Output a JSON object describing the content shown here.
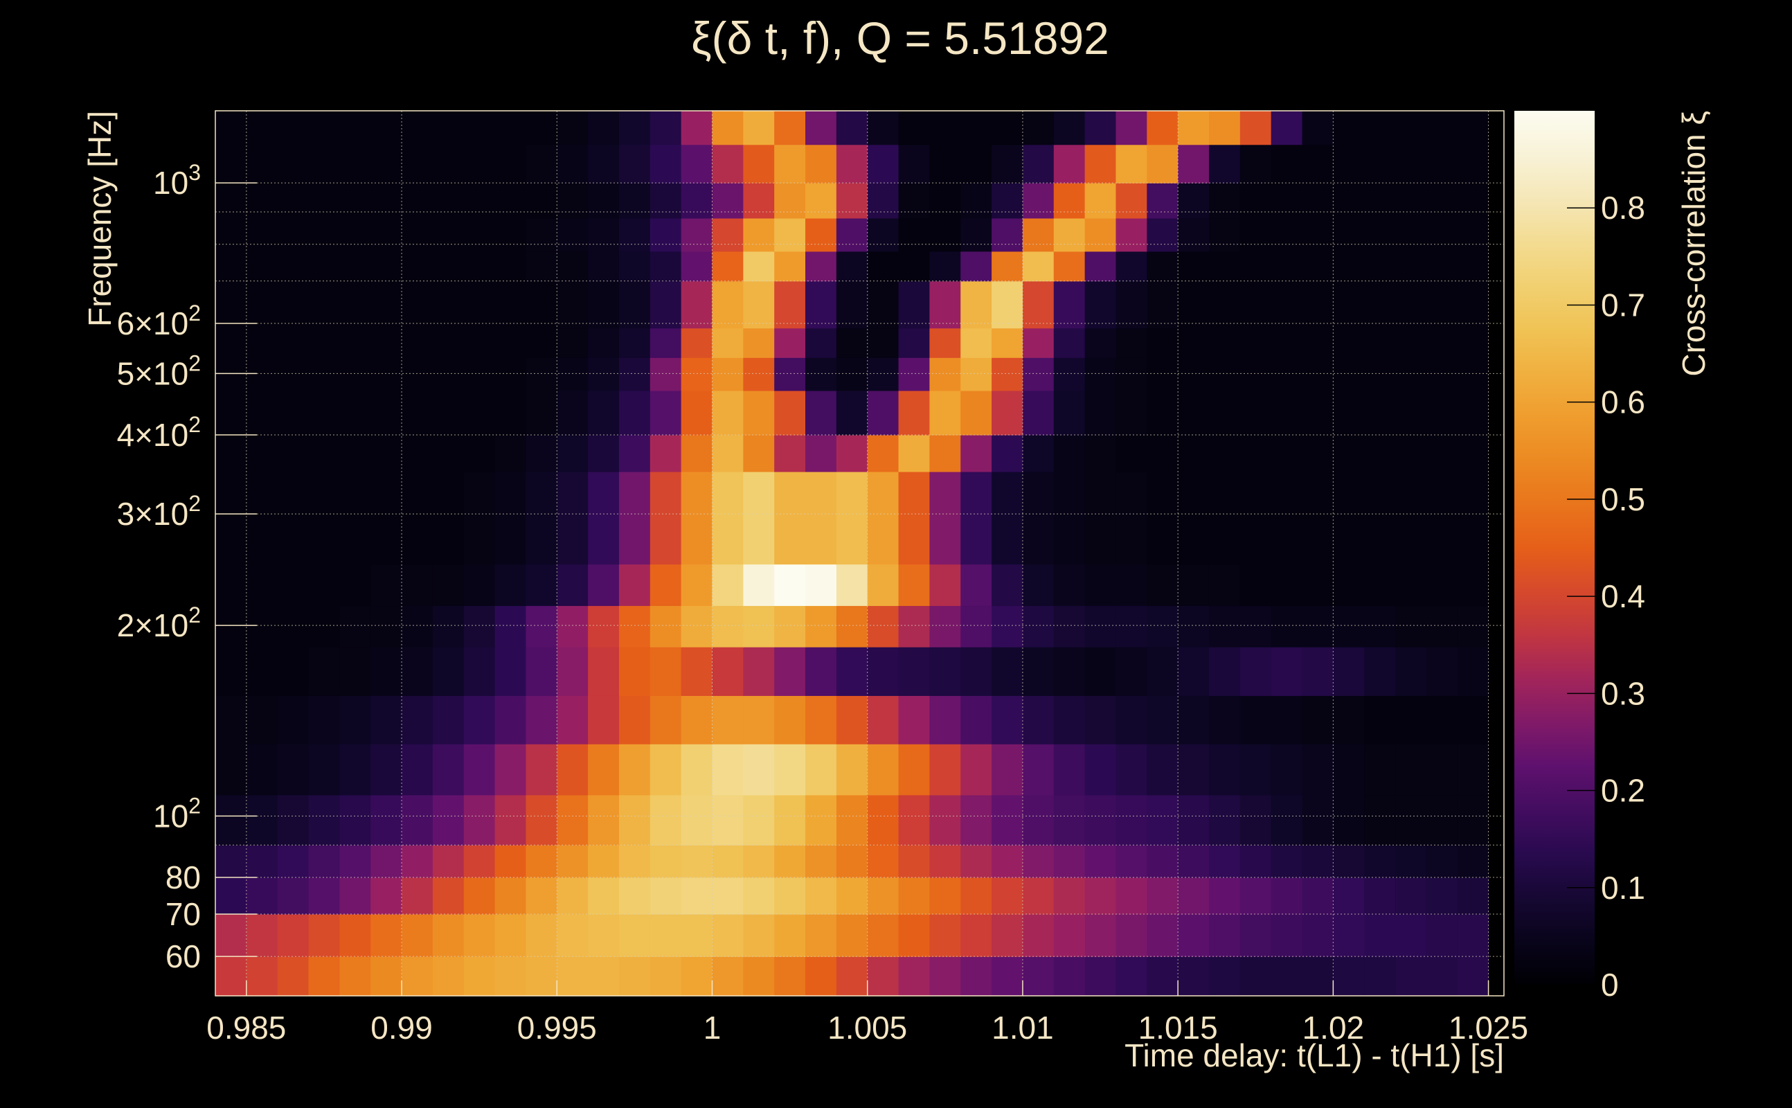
{
  "chart_data": {
    "type": "heatmap",
    "title": "ξ(δ t, f), Q = 5.51892",
    "xlabel": "Time delay: t(L1) - t(H1) [s]",
    "ylabel": "Frequency [Hz]",
    "colorbar_label": "Cross-correlation ξ",
    "x_scale": "linear",
    "y_scale": "log",
    "xlim": [
      0.984,
      1.0255
    ],
    "ylim": [
      52,
      1300
    ],
    "grid": true,
    "colormap": "inferno",
    "color_range": [
      0,
      0.9
    ],
    "x_ticks": [
      0.985,
      0.99,
      0.995,
      1,
      1.005,
      1.01,
      1.015,
      1.02,
      1.025
    ],
    "x_tick_labels": [
      "0.985",
      "0.99",
      "0.995",
      "1",
      "1.005",
      "1.01",
      "1.015",
      "1.02",
      "1.025"
    ],
    "y_ticks": [
      {
        "value": 60,
        "base": "60",
        "exp": ""
      },
      {
        "value": 70,
        "base": "70",
        "exp": ""
      },
      {
        "value": 80,
        "base": "80",
        "exp": ""
      },
      {
        "value": 100,
        "base": "10",
        "exp": "2"
      },
      {
        "value": 200,
        "base": "2×10",
        "exp": "2"
      },
      {
        "value": 300,
        "base": "3×10",
        "exp": "2"
      },
      {
        "value": 400,
        "base": "4×10",
        "exp": "2"
      },
      {
        "value": 500,
        "base": "5×10",
        "exp": "2"
      },
      {
        "value": 600,
        "base": "6×10",
        "exp": "2"
      },
      {
        "value": 1000,
        "base": "10",
        "exp": "3"
      }
    ],
    "y_minor_grid": [
      90,
      700,
      800,
      900
    ],
    "colorbar_ticks": [
      0,
      0.1,
      0.2,
      0.3,
      0.4,
      0.5,
      0.6,
      0.7,
      0.8
    ],
    "colorbar_tick_labels": [
      "0",
      "0.1",
      "0.2",
      "0.3",
      "0.4",
      "0.5",
      "0.6",
      "0.7",
      "0.8"
    ],
    "x_bins": {
      "start": 0.984,
      "step": 0.001,
      "count": 41
    },
    "y_bin_edges": [
      52,
      60,
      70,
      80,
      90,
      108,
      130,
      155,
      185,
      215,
      250,
      350,
      400,
      470,
      530,
      590,
      700,
      780,
      880,
      1000,
      1150,
      1300
    ],
    "rows_low_to_high": [
      [
        0.37,
        0.39,
        0.42,
        0.47,
        0.51,
        0.54,
        0.57,
        0.59,
        0.61,
        0.62,
        0.63,
        0.64,
        0.64,
        0.63,
        0.62,
        0.6,
        0.57,
        0.54,
        0.5,
        0.45,
        0.4,
        0.35,
        0.31,
        0.28,
        0.25,
        0.23,
        0.21,
        0.19,
        0.17,
        0.15,
        0.13,
        0.12,
        0.11,
        0.1,
        0.1,
        0.1,
        0.11,
        0.11,
        0.12,
        0.12,
        0.13
      ],
      [
        0.34,
        0.36,
        0.38,
        0.41,
        0.44,
        0.48,
        0.51,
        0.55,
        0.58,
        0.6,
        0.63,
        0.65,
        0.66,
        0.67,
        0.67,
        0.67,
        0.66,
        0.64,
        0.61,
        0.57,
        0.53,
        0.49,
        0.45,
        0.41,
        0.38,
        0.35,
        0.32,
        0.3,
        0.28,
        0.26,
        0.24,
        0.22,
        0.2,
        0.18,
        0.17,
        0.16,
        0.15,
        0.14,
        0.14,
        0.13,
        0.13
      ],
      [
        0.14,
        0.16,
        0.18,
        0.21,
        0.25,
        0.3,
        0.35,
        0.41,
        0.47,
        0.53,
        0.59,
        0.64,
        0.68,
        0.71,
        0.73,
        0.74,
        0.74,
        0.72,
        0.69,
        0.65,
        0.61,
        0.56,
        0.51,
        0.47,
        0.43,
        0.39,
        0.36,
        0.33,
        0.31,
        0.29,
        0.27,
        0.25,
        0.23,
        0.21,
        0.19,
        0.17,
        0.15,
        0.13,
        0.12,
        0.11,
        0.1
      ],
      [
        0.12,
        0.13,
        0.15,
        0.18,
        0.21,
        0.25,
        0.29,
        0.34,
        0.39,
        0.45,
        0.51,
        0.56,
        0.61,
        0.65,
        0.67,
        0.68,
        0.67,
        0.65,
        0.61,
        0.56,
        0.51,
        0.46,
        0.41,
        0.37,
        0.33,
        0.3,
        0.27,
        0.25,
        0.23,
        0.21,
        0.19,
        0.17,
        0.15,
        0.13,
        0.11,
        0.1,
        0.09,
        0.08,
        0.07,
        0.06,
        0.05
      ],
      [
        0.06,
        0.07,
        0.09,
        0.11,
        0.13,
        0.16,
        0.19,
        0.23,
        0.28,
        0.34,
        0.41,
        0.49,
        0.57,
        0.64,
        0.7,
        0.73,
        0.74,
        0.72,
        0.67,
        0.61,
        0.53,
        0.45,
        0.38,
        0.32,
        0.27,
        0.23,
        0.2,
        0.18,
        0.17,
        0.16,
        0.15,
        0.13,
        0.11,
        0.09,
        0.07,
        0.05,
        0.04,
        0.03,
        0.03,
        0.03,
        0.03
      ],
      [
        0.03,
        0.04,
        0.05,
        0.06,
        0.08,
        0.1,
        0.13,
        0.17,
        0.22,
        0.28,
        0.35,
        0.43,
        0.51,
        0.59,
        0.66,
        0.72,
        0.76,
        0.77,
        0.75,
        0.7,
        0.63,
        0.55,
        0.47,
        0.39,
        0.32,
        0.26,
        0.21,
        0.17,
        0.14,
        0.12,
        0.1,
        0.09,
        0.08,
        0.07,
        0.06,
        0.05,
        0.04,
        0.03,
        0.03,
        0.03,
        0.03
      ],
      [
        0.03,
        0.03,
        0.04,
        0.05,
        0.06,
        0.08,
        0.1,
        0.12,
        0.15,
        0.19,
        0.24,
        0.3,
        0.37,
        0.44,
        0.5,
        0.55,
        0.57,
        0.57,
        0.54,
        0.49,
        0.43,
        0.36,
        0.3,
        0.24,
        0.19,
        0.15,
        0.12,
        0.1,
        0.09,
        0.08,
        0.07,
        0.06,
        0.05,
        0.04,
        0.04,
        0.03,
        0.03,
        0.02,
        0.02,
        0.02,
        0.02
      ],
      [
        0.02,
        0.02,
        0.02,
        0.03,
        0.03,
        0.04,
        0.05,
        0.07,
        0.1,
        0.14,
        0.2,
        0.28,
        0.37,
        0.45,
        0.47,
        0.42,
        0.37,
        0.33,
        0.27,
        0.2,
        0.15,
        0.13,
        0.12,
        0.11,
        0.1,
        0.08,
        0.06,
        0.05,
        0.04,
        0.05,
        0.06,
        0.08,
        0.1,
        0.12,
        0.13,
        0.12,
        0.1,
        0.08,
        0.06,
        0.05,
        0.04
      ],
      [
        0.02,
        0.02,
        0.02,
        0.02,
        0.03,
        0.03,
        0.04,
        0.06,
        0.09,
        0.14,
        0.21,
        0.29,
        0.38,
        0.46,
        0.55,
        0.62,
        0.66,
        0.67,
        0.64,
        0.58,
        0.5,
        0.41,
        0.33,
        0.26,
        0.2,
        0.15,
        0.11,
        0.09,
        0.08,
        0.08,
        0.07,
        0.06,
        0.05,
        0.05,
        0.04,
        0.04,
        0.04,
        0.04,
        0.03,
        0.03,
        0.03
      ],
      [
        0.02,
        0.02,
        0.02,
        0.02,
        0.02,
        0.03,
        0.03,
        0.03,
        0.04,
        0.06,
        0.08,
        0.12,
        0.2,
        0.32,
        0.46,
        0.58,
        0.74,
        0.86,
        0.9,
        0.89,
        0.79,
        0.62,
        0.48,
        0.34,
        0.21,
        0.12,
        0.07,
        0.05,
        0.04,
        0.04,
        0.03,
        0.03,
        0.03,
        0.02,
        0.02,
        0.02,
        0.02,
        0.02,
        0.02,
        0.02,
        0.02
      ],
      [
        0.02,
        0.02,
        0.02,
        0.02,
        0.02,
        0.02,
        0.02,
        0.02,
        0.03,
        0.04,
        0.06,
        0.09,
        0.15,
        0.25,
        0.4,
        0.55,
        0.68,
        0.72,
        0.64,
        0.64,
        0.66,
        0.59,
        0.44,
        0.27,
        0.15,
        0.08,
        0.05,
        0.04,
        0.03,
        0.03,
        0.02,
        0.02,
        0.02,
        0.02,
        0.02,
        0.02,
        0.02,
        0.02,
        0.02,
        0.02,
        0.02
      ],
      [
        0.02,
        0.02,
        0.02,
        0.02,
        0.02,
        0.02,
        0.02,
        0.02,
        0.02,
        0.03,
        0.05,
        0.07,
        0.1,
        0.17,
        0.32,
        0.5,
        0.64,
        0.53,
        0.34,
        0.26,
        0.32,
        0.48,
        0.62,
        0.5,
        0.28,
        0.14,
        0.07,
        0.04,
        0.03,
        0.02,
        0.02,
        0.02,
        0.02,
        0.02,
        0.02,
        0.02,
        0.02,
        0.02,
        0.02,
        0.02,
        0.02
      ],
      [
        0.02,
        0.02,
        0.02,
        0.02,
        0.02,
        0.02,
        0.02,
        0.02,
        0.02,
        0.02,
        0.03,
        0.05,
        0.08,
        0.13,
        0.21,
        0.45,
        0.62,
        0.55,
        0.42,
        0.18,
        0.08,
        0.2,
        0.42,
        0.6,
        0.53,
        0.36,
        0.16,
        0.07,
        0.04,
        0.03,
        0.02,
        0.02,
        0.02,
        0.02,
        0.02,
        0.02,
        0.02,
        0.02,
        0.02,
        0.02,
        0.02
      ],
      [
        0.02,
        0.02,
        0.02,
        0.02,
        0.02,
        0.02,
        0.02,
        0.02,
        0.02,
        0.02,
        0.03,
        0.04,
        0.06,
        0.1,
        0.26,
        0.46,
        0.56,
        0.44,
        0.18,
        0.06,
        0.04,
        0.06,
        0.22,
        0.55,
        0.62,
        0.42,
        0.2,
        0.08,
        0.04,
        0.03,
        0.02,
        0.02,
        0.02,
        0.02,
        0.02,
        0.02,
        0.02,
        0.02,
        0.02,
        0.02,
        0.02
      ],
      [
        0.02,
        0.02,
        0.02,
        0.02,
        0.02,
        0.02,
        0.02,
        0.02,
        0.02,
        0.02,
        0.02,
        0.03,
        0.05,
        0.08,
        0.18,
        0.42,
        0.62,
        0.56,
        0.3,
        0.1,
        0.03,
        0.03,
        0.12,
        0.42,
        0.66,
        0.6,
        0.3,
        0.12,
        0.05,
        0.03,
        0.02,
        0.02,
        0.02,
        0.02,
        0.02,
        0.02,
        0.02,
        0.02,
        0.02,
        0.02,
        0.02
      ],
      [
        0.02,
        0.02,
        0.02,
        0.02,
        0.02,
        0.02,
        0.02,
        0.02,
        0.02,
        0.02,
        0.02,
        0.03,
        0.04,
        0.06,
        0.12,
        0.32,
        0.6,
        0.64,
        0.4,
        0.15,
        0.05,
        0.03,
        0.1,
        0.3,
        0.64,
        0.72,
        0.4,
        0.16,
        0.08,
        0.05,
        0.03,
        0.02,
        0.02,
        0.02,
        0.02,
        0.02,
        0.02,
        0.02,
        0.02,
        0.02,
        0.02
      ],
      [
        0.02,
        0.02,
        0.02,
        0.02,
        0.02,
        0.02,
        0.02,
        0.02,
        0.02,
        0.02,
        0.03,
        0.03,
        0.05,
        0.07,
        0.1,
        0.23,
        0.46,
        0.7,
        0.58,
        0.25,
        0.06,
        0.02,
        0.02,
        0.06,
        0.2,
        0.5,
        0.66,
        0.48,
        0.2,
        0.08,
        0.03,
        0.02,
        0.02,
        0.02,
        0.02,
        0.02,
        0.02,
        0.02,
        0.02,
        0.02,
        0.02
      ],
      [
        0.02,
        0.02,
        0.02,
        0.02,
        0.02,
        0.02,
        0.02,
        0.02,
        0.02,
        0.02,
        0.03,
        0.04,
        0.05,
        0.08,
        0.14,
        0.25,
        0.4,
        0.58,
        0.65,
        0.45,
        0.2,
        0.06,
        0.02,
        0.02,
        0.05,
        0.2,
        0.5,
        0.62,
        0.55,
        0.3,
        0.12,
        0.05,
        0.03,
        0.02,
        0.02,
        0.02,
        0.02,
        0.02,
        0.02,
        0.02,
        0.02
      ],
      [
        0.02,
        0.02,
        0.02,
        0.02,
        0.02,
        0.02,
        0.02,
        0.02,
        0.02,
        0.02,
        0.02,
        0.03,
        0.04,
        0.06,
        0.1,
        0.16,
        0.24,
        0.38,
        0.56,
        0.6,
        0.35,
        0.12,
        0.03,
        0.02,
        0.04,
        0.1,
        0.24,
        0.45,
        0.6,
        0.42,
        0.18,
        0.06,
        0.03,
        0.02,
        0.02,
        0.02,
        0.02,
        0.02,
        0.02,
        0.02,
        0.02
      ],
      [
        0.02,
        0.02,
        0.02,
        0.02,
        0.02,
        0.02,
        0.02,
        0.02,
        0.02,
        0.02,
        0.03,
        0.04,
        0.06,
        0.09,
        0.14,
        0.22,
        0.34,
        0.44,
        0.58,
        0.52,
        0.32,
        0.14,
        0.05,
        0.02,
        0.02,
        0.05,
        0.12,
        0.3,
        0.44,
        0.6,
        0.56,
        0.25,
        0.08,
        0.03,
        0.02,
        0.02,
        0.02,
        0.02,
        0.02,
        0.02,
        0.02
      ],
      [
        0.02,
        0.02,
        0.02,
        0.02,
        0.02,
        0.02,
        0.02,
        0.02,
        0.02,
        0.02,
        0.02,
        0.03,
        0.05,
        0.08,
        0.12,
        0.3,
        0.55,
        0.62,
        0.48,
        0.25,
        0.12,
        0.05,
        0.02,
        0.02,
        0.02,
        0.02,
        0.03,
        0.06,
        0.12,
        0.25,
        0.45,
        0.58,
        0.55,
        0.42,
        0.15,
        0.04,
        0.02,
        0.02,
        0.02,
        0.02,
        0.02
      ]
    ]
  }
}
